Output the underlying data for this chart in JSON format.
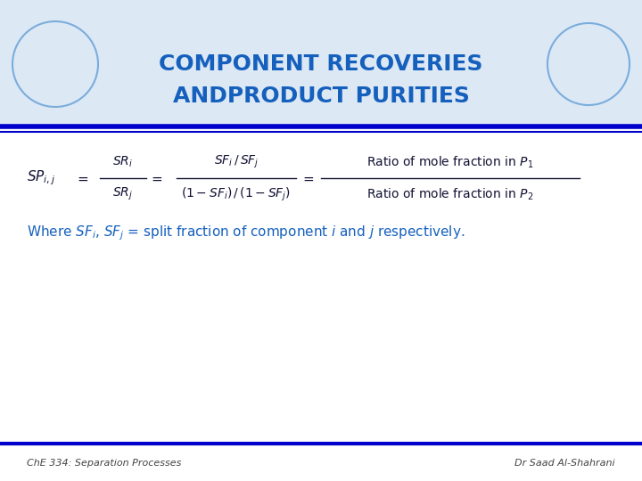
{
  "title_line1": "COMPONENT RECOVERIES",
  "title_line2": "ANDPRODUCT PURITIES",
  "title_color": "#1560bd",
  "title_fontsize": 18,
  "bg_color": "#ffffff",
  "header_bg_color": "#dde8f5",
  "header_bar_color": "#0000cc",
  "footer_bar_color": "#0000cc",
  "footer_left": "ChE 334: Separation Processes",
  "footer_right": "Dr Saad Al-Shahrani",
  "footer_fontsize": 8,
  "formula_color": "#111133",
  "text_color": "#1560bd",
  "where_fontsize": 11
}
